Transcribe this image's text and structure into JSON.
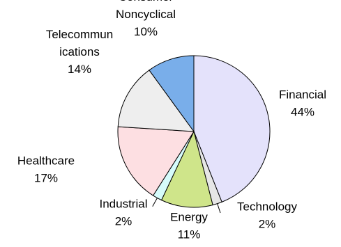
{
  "chart_data": {
    "type": "pie",
    "title": "",
    "series": [
      {
        "name": "",
        "values": [
          44,
          2,
          11,
          2,
          17,
          14,
          10
        ]
      }
    ],
    "slices": [
      {
        "label_lines": [
          "Financial"
        ],
        "percent_text": "44%",
        "value": 44,
        "color": "#e4e2fb"
      },
      {
        "label_lines": [
          "Technology"
        ],
        "percent_text": "2%",
        "value": 2,
        "color": "#e6e6e6"
      },
      {
        "label_lines": [
          "Energy"
        ],
        "percent_text": "11%",
        "value": 11,
        "color": "#cfe58a"
      },
      {
        "label_lines": [
          "Industrial"
        ],
        "percent_text": "2%",
        "value": 2,
        "color": "#d6fbfb"
      },
      {
        "label_lines": [
          "Healthcare"
        ],
        "percent_text": "17%",
        "value": 17,
        "color": "#fddfe2"
      },
      {
        "label_lines": [
          "Telecommun",
          "ications"
        ],
        "percent_text": "14%",
        "value": 14,
        "color": "#eeeeee"
      },
      {
        "label_lines": [
          "Consumer",
          "Noncyclical"
        ],
        "percent_text": "10%",
        "value": 10,
        "color": "#79aeea"
      }
    ],
    "start_angle_deg": 0,
    "direction": "clockwise",
    "legend": "none",
    "grid": false,
    "outline_color": "#000000"
  }
}
